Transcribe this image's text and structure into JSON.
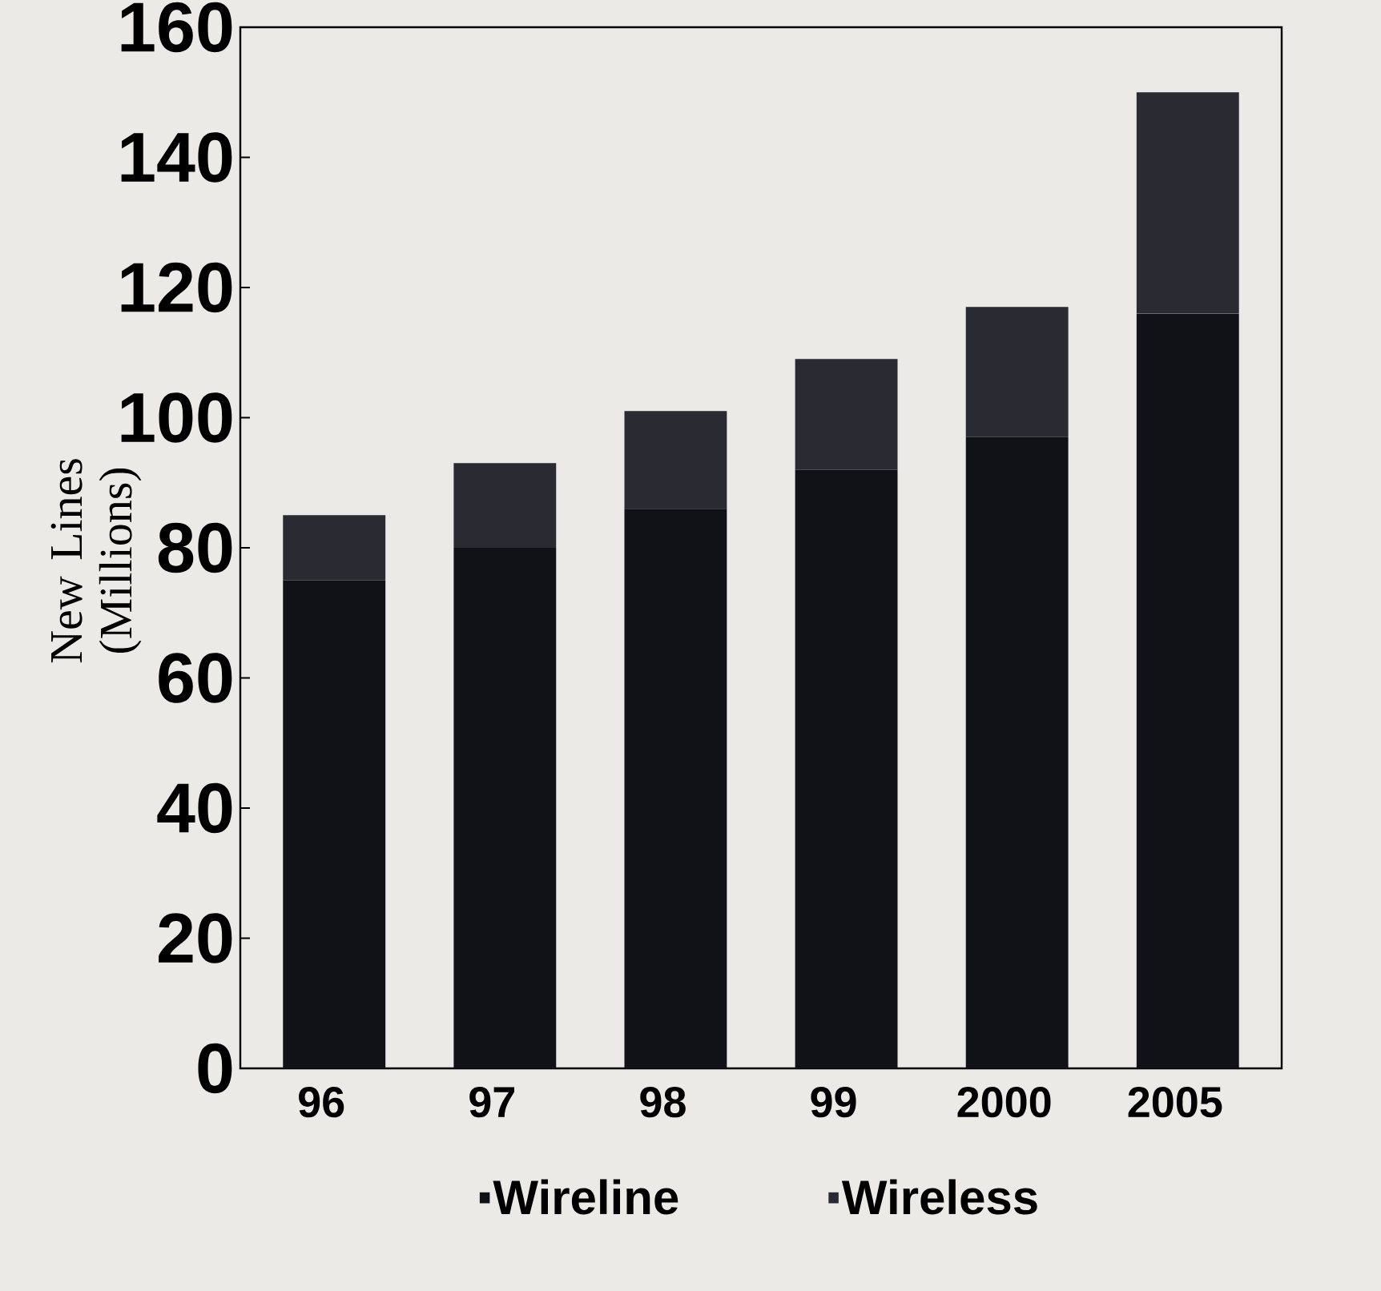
{
  "chart_data": {
    "type": "bar",
    "stacked": true,
    "ylabel": "New Lines (Millions)",
    "categories": [
      "96",
      "97",
      "98",
      "99",
      "2000",
      "2005"
    ],
    "series": [
      {
        "name": "Wireline",
        "color": "#111118",
        "values": [
          75,
          80,
          86,
          92,
          97,
          116
        ]
      },
      {
        "name": "Wireless",
        "color": "#2a2a33",
        "values": [
          10,
          13,
          15,
          17,
          20,
          34
        ]
      }
    ],
    "ylim": [
      0,
      160
    ],
    "yticks": [
      0,
      20,
      40,
      60,
      80,
      100,
      120,
      140,
      160
    ],
    "grid": false,
    "legend": "bottom"
  }
}
